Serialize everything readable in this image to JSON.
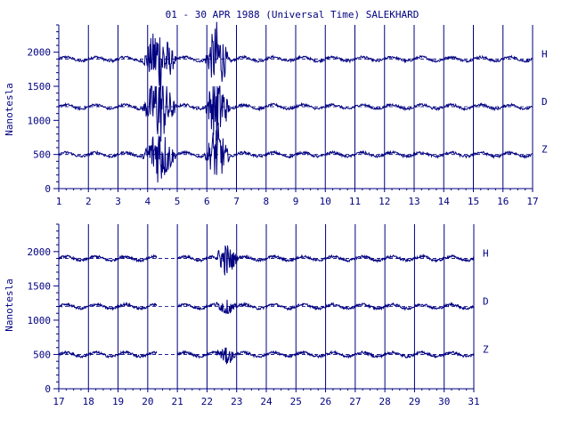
{
  "title": "01 - 30 APR 1988 (Universal Time) SALEKHARD",
  "ylabel": "Nanotesla",
  "colors": {
    "line": "#000080",
    "background": "#ffffff"
  },
  "chart_data": [
    {
      "type": "line",
      "panel": "top",
      "x_range": [
        1,
        17
      ],
      "x_ticks": [
        "1",
        "2",
        "3",
        "4",
        "5",
        "6",
        "7",
        "8",
        "9",
        "10",
        "11",
        "12",
        "13",
        "14",
        "15",
        "16",
        "17"
      ],
      "ylim": [
        0,
        2400
      ],
      "y_ticks": [
        "0",
        "500",
        "1000",
        "1500",
        "2000"
      ],
      "ylabel": "Nanotesla",
      "grid": "vertical lines at each day",
      "series": [
        {
          "name": "H",
          "baseline": 1900,
          "approx_range": [
            1180,
            2450
          ]
        },
        {
          "name": "D",
          "baseline": 1200,
          "approx_range": [
            100,
            1500
          ]
        },
        {
          "name": "Z",
          "baseline": 500,
          "approx_range": [
            -100,
            1000
          ]
        }
      ],
      "disturbances": [
        {
          "day_start": 3.8,
          "day_end": 5.0,
          "description": "major storm, large excursions in H, D, Z"
        },
        {
          "day_start": 5.9,
          "day_end": 6.8,
          "description": "secondary disturbance"
        }
      ]
    },
    {
      "type": "line",
      "panel": "bottom",
      "x_range": [
        17,
        31
      ],
      "x_ticks": [
        "17",
        "18",
        "19",
        "20",
        "21",
        "22",
        "23",
        "24",
        "25",
        "26",
        "27",
        "28",
        "29",
        "30",
        "31"
      ],
      "ylim": [
        0,
        2400
      ],
      "y_ticks": [
        "0",
        "500",
        "1000",
        "1500",
        "2000"
      ],
      "ylabel": "Nanotesla",
      "grid": "vertical lines at each day",
      "series": [
        {
          "name": "H",
          "baseline": 1900,
          "approx_range": [
            1600,
            2200
          ]
        },
        {
          "name": "D",
          "baseline": 1200,
          "approx_range": [
            1100,
            1400
          ]
        },
        {
          "name": "Z",
          "baseline": 500,
          "approx_range": [
            300,
            600
          ]
        }
      ],
      "data_gap": [
        20.3,
        21.0
      ],
      "disturbances": [
        {
          "day_start": 22.2,
          "day_end": 23.1,
          "description": "disturbance"
        }
      ]
    }
  ]
}
